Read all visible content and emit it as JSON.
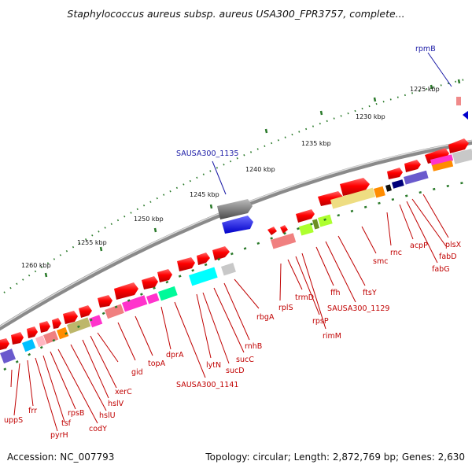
{
  "title": "Staphylococcus aureus subsp. aureus USA300_FPR3757, complete...",
  "footer": {
    "accession": "Accession: NC_007793",
    "topology": "Topology: circular; Length: 2,872,769 bp; Genes: 2,630"
  },
  "scale_labels": [
    "1225 kbp",
    "1230 kbp",
    "1235 kbp",
    "1240 kbp",
    "1245 kbp",
    "1250 kbp",
    "1255 kbp",
    "1260 kbp"
  ],
  "highlights": [
    "rpmB",
    "SAUSA300_1135"
  ],
  "gene_labels": [
    "uppS",
    "frr",
    "pyrH",
    "tsf",
    "rpsB",
    "codY",
    "hslU",
    "hslV",
    "xerC",
    "gid",
    "topA",
    "dprA",
    "SAUSA300_1141",
    "lytN",
    "sucD",
    "sucC",
    "rnhB",
    "rbgA",
    "rplS",
    "trmD",
    "rpsP",
    "rimM",
    "ffh",
    "SAUSA300_1129",
    "ftsY",
    "smc",
    "rnc",
    "acpP",
    "fabG",
    "fabD",
    "plsX"
  ],
  "colors": {
    "gene_arrow": "#ee0000",
    "label": "#c00000",
    "highlight": "#1a1aa6",
    "tick": "#2a7a2a"
  }
}
